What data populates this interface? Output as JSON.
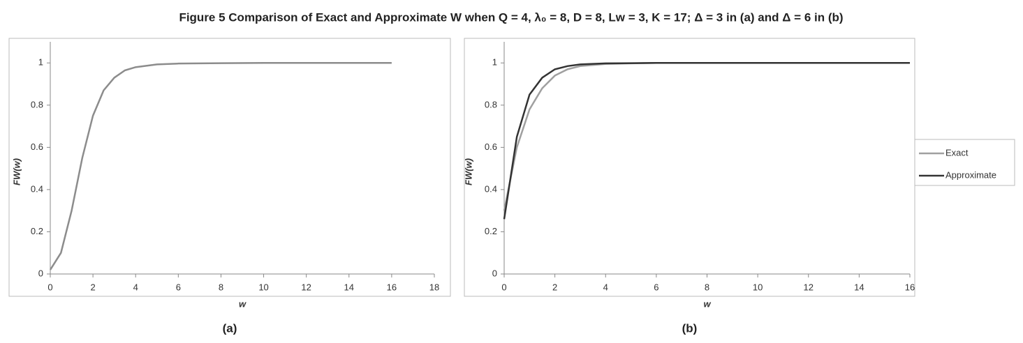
{
  "title": "Figure 5    Comparison of Exact and Approximate W when Q = 4, λ₀ = 8, D = 8, Lw = 3, K = 17; Δ = 3 in (a) and Δ = 6 in (b)",
  "chart_data": [
    {
      "type": "line",
      "caption": "(a)",
      "xlabel": "w",
      "ylabel": "FW(w)",
      "xlim": [
        0,
        18
      ],
      "xticks": [
        0,
        2,
        4,
        6,
        8,
        10,
        12,
        14,
        16,
        18
      ],
      "ylim": [
        0,
        1.1
      ],
      "yticks": [
        0,
        0.2,
        0.4,
        0.6,
        0.8,
        1
      ],
      "x": [
        0,
        0.5,
        1,
        1.5,
        2,
        2.5,
        3,
        3.5,
        4,
        5,
        6,
        8,
        10,
        12,
        14,
        16
      ],
      "series": [
        {
          "color": "#8c8c8c",
          "values": [
            0.02,
            0.1,
            0.3,
            0.55,
            0.75,
            0.87,
            0.93,
            0.965,
            0.98,
            0.993,
            0.997,
            0.999,
            1,
            1,
            1,
            1
          ]
        }
      ],
      "legend": false
    },
    {
      "type": "line",
      "caption": "(b)",
      "xlabel": "w",
      "ylabel": "FW(w)",
      "xlim": [
        0,
        16
      ],
      "xticks": [
        0,
        2,
        4,
        6,
        8,
        10,
        12,
        14,
        16
      ],
      "ylim": [
        0,
        1.1
      ],
      "yticks": [
        0,
        0.2,
        0.4,
        0.6,
        0.8,
        1
      ],
      "x": [
        0,
        0.5,
        1,
        1.5,
        2,
        2.5,
        3,
        4,
        5,
        6,
        8,
        10,
        12,
        14,
        16
      ],
      "series": [
        {
          "name": "Exact",
          "color": "#a0a0a0",
          "values": [
            0.3,
            0.6,
            0.78,
            0.88,
            0.94,
            0.97,
            0.985,
            0.995,
            0.998,
            1,
            1,
            1,
            1,
            1,
            1
          ]
        },
        {
          "name": "Approximate",
          "color": "#333333",
          "values": [
            0.26,
            0.65,
            0.85,
            0.93,
            0.97,
            0.985,
            0.993,
            0.998,
            0.999,
            1,
            1,
            1,
            1,
            1,
            1
          ]
        }
      ],
      "legend": "right"
    }
  ]
}
